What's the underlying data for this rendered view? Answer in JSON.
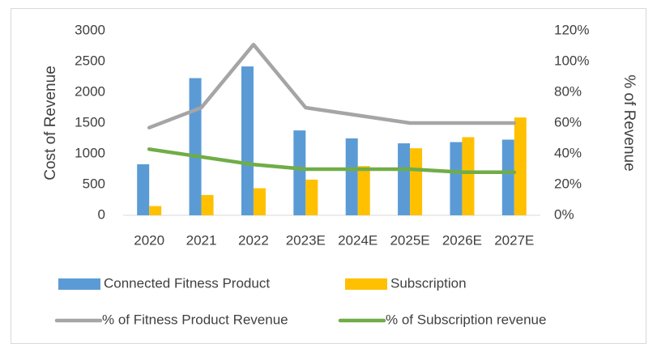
{
  "chart_data": {
    "type": "combo",
    "categories": [
      "2020",
      "2021",
      "2022",
      "2023E",
      "2024E",
      "2025E",
      "2026E",
      "2027E"
    ],
    "series": [
      {
        "name": "Connected Fitness Product",
        "type": "bar",
        "color": "#5b9bd5",
        "values": [
          830,
          2230,
          2420,
          1380,
          1250,
          1170,
          1190,
          1230
        ]
      },
      {
        "name": "Subscription",
        "type": "bar",
        "color": "#ffc000",
        "values": [
          150,
          330,
          440,
          580,
          800,
          1090,
          1270,
          1590
        ]
      },
      {
        "name": "% of Fitness Product Revenue",
        "type": "line",
        "axis": "y2",
        "color": "#a5a5a5",
        "values": [
          57,
          70,
          111,
          70,
          65,
          60,
          60,
          60
        ]
      },
      {
        "name": "% of Subscription revenue",
        "type": "line",
        "axis": "y2",
        "color": "#70ad47",
        "values": [
          43,
          38,
          33,
          30,
          30,
          30,
          28,
          28
        ]
      }
    ],
    "ylabel": "Cost of Revenue",
    "y2label": "% of Revenue",
    "ylim": [
      0,
      3000
    ],
    "yticks": [
      0,
      500,
      1000,
      1500,
      2000,
      2500,
      3000
    ],
    "y2lim": [
      0,
      120
    ],
    "y2ticks": [
      {
        "value": 0,
        "label": "0%"
      },
      {
        "value": 20,
        "label": "20%"
      },
      {
        "value": 40,
        "label": "40%"
      },
      {
        "value": 60,
        "label": "60%"
      },
      {
        "value": 80,
        "label": "80%"
      },
      {
        "value": 100,
        "label": "100%"
      },
      {
        "value": 120,
        "label": "120%"
      }
    ],
    "legend": "bottom"
  }
}
